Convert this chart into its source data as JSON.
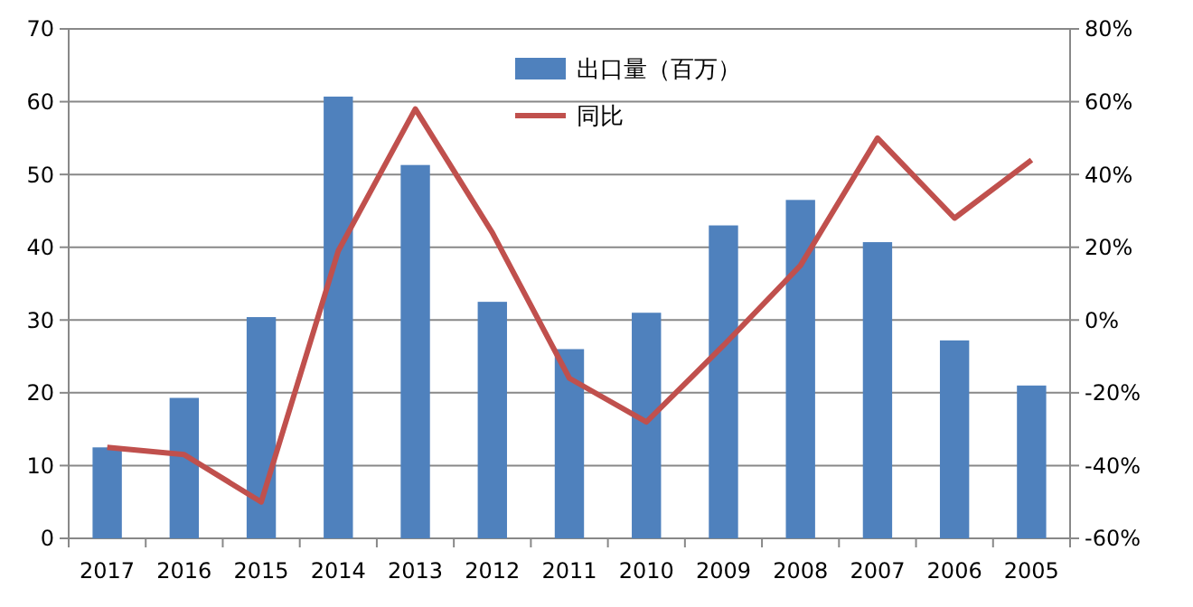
{
  "chart_data": {
    "type": "bar",
    "categories": [
      "2017",
      "2016",
      "2015",
      "2014",
      "2013",
      "2012",
      "2011",
      "2010",
      "2009",
      "2008",
      "2007",
      "2006",
      "2005"
    ],
    "series": [
      {
        "name": "出口量（百万）",
        "color": "#4f81bd",
        "values": [
          12.5,
          19.3,
          30.4,
          60.7,
          51.3,
          32.5,
          26,
          31,
          43,
          46.5,
          40.7,
          27.2,
          21
        ]
      },
      {
        "name": "同比",
        "type": "line",
        "axis": "y2",
        "color": "#c0504d",
        "values": [
          -35,
          -37,
          -50,
          19,
          58,
          24,
          -16,
          -28,
          -7,
          15,
          50,
          28,
          44
        ]
      }
    ],
    "ylim": [
      0,
      70
    ],
    "yticks": [
      0,
      10,
      20,
      30,
      40,
      50,
      60,
      70
    ],
    "y2lim": [
      -60,
      80
    ],
    "y2ticks": [
      {
        "value": -60,
        "label": "-60%"
      },
      {
        "value": -40,
        "label": "-40%"
      },
      {
        "value": -20,
        "label": "-20%"
      },
      {
        "value": 0,
        "label": "0%"
      },
      {
        "value": 20,
        "label": "20%"
      },
      {
        "value": 40,
        "label": "40%"
      },
      {
        "value": 60,
        "label": "60%"
      },
      {
        "value": 80,
        "label": "80%"
      }
    ],
    "grid": "y",
    "legend": "top",
    "marker": "none"
  }
}
